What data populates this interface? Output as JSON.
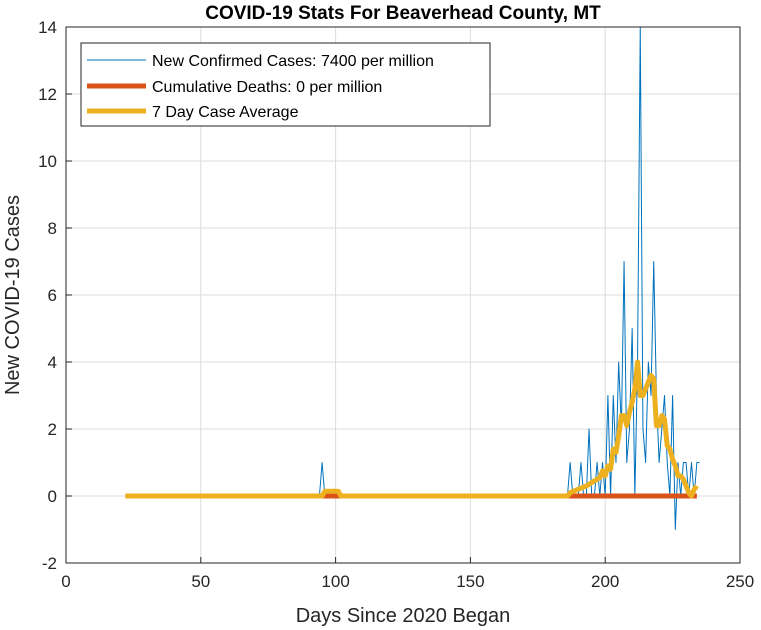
{
  "chart_data": {
    "type": "line",
    "title": "COVID-19 Stats For Beaverhead County, MT",
    "xlabel": "Days Since 2020 Began",
    "ylabel": "New COVID-19 Cases",
    "xlim": [
      0,
      250
    ],
    "ylim": [
      -2,
      14
    ],
    "xticks": [
      0,
      50,
      100,
      150,
      200,
      250
    ],
    "yticks": [
      -2,
      0,
      2,
      4,
      6,
      8,
      10,
      12,
      14
    ],
    "grid": true,
    "legend_position": "top-left",
    "series": [
      {
        "name": "New Confirmed Cases: 7400 per million",
        "color": "#0072BD",
        "points": [
          [
            22,
            0
          ],
          [
            94,
            0
          ],
          [
            95,
            1
          ],
          [
            96,
            0
          ],
          [
            186,
            0
          ],
          [
            187,
            1
          ],
          [
            188,
            0
          ],
          [
            190,
            0
          ],
          [
            191,
            1
          ],
          [
            192,
            0
          ],
          [
            193,
            0
          ],
          [
            194,
            2
          ],
          [
            195,
            0
          ],
          [
            196,
            0
          ],
          [
            197,
            1
          ],
          [
            198,
            0
          ],
          [
            199,
            1
          ],
          [
            200,
            0
          ],
          [
            201,
            3
          ],
          [
            202,
            0
          ],
          [
            203,
            3
          ],
          [
            204,
            1
          ],
          [
            205,
            4
          ],
          [
            206,
            2
          ],
          [
            207,
            7
          ],
          [
            208,
            1
          ],
          [
            209,
            2
          ],
          [
            210,
            5
          ],
          [
            211,
            0
          ],
          [
            212,
            4
          ],
          [
            213,
            14
          ],
          [
            214,
            2
          ],
          [
            215,
            1
          ],
          [
            216,
            4
          ],
          [
            217,
            3
          ],
          [
            218,
            7
          ],
          [
            219,
            3
          ],
          [
            220,
            1
          ],
          [
            221,
            2
          ],
          [
            222,
            3
          ],
          [
            223,
            1
          ],
          [
            224,
            0
          ],
          [
            225,
            3
          ],
          [
            226,
            -1
          ],
          [
            227,
            1
          ],
          [
            228,
            0
          ],
          [
            229,
            1
          ],
          [
            230,
            1
          ],
          [
            231,
            0
          ],
          [
            232,
            1
          ],
          [
            233,
            0
          ],
          [
            234,
            1
          ],
          [
            235,
            1
          ]
        ]
      },
      {
        "name": "Cumulative Deaths: 0 per million",
        "color": "#D95319",
        "points": [
          [
            95,
            0
          ],
          [
            101,
            0
          ],
          [
            187,
            0
          ],
          [
            234,
            0
          ]
        ]
      },
      {
        "name": "7 Day Case Average",
        "color": "#EDB120",
        "points": [
          [
            22,
            0
          ],
          [
            95,
            0
          ],
          [
            96,
            0.14
          ],
          [
            101,
            0.14
          ],
          [
            102,
            0
          ],
          [
            186,
            0
          ],
          [
            187,
            0.1
          ],
          [
            190,
            0.2
          ],
          [
            193,
            0.3
          ],
          [
            196,
            0.45
          ],
          [
            198,
            0.55
          ],
          [
            199,
            0.75
          ],
          [
            200,
            0.6
          ],
          [
            201,
            0.9
          ],
          [
            202,
            0.8
          ],
          [
            203,
            1.4
          ],
          [
            204,
            1.3
          ],
          [
            205,
            1.8
          ],
          [
            206,
            2.4
          ],
          [
            207,
            2.4
          ],
          [
            208,
            2.1
          ],
          [
            209,
            2.5
          ],
          [
            210,
            2.8
          ],
          [
            211,
            3.2
          ],
          [
            212,
            4.0
          ],
          [
            213,
            3.0
          ],
          [
            214,
            3.0
          ],
          [
            215,
            3.2
          ],
          [
            216,
            3.4
          ],
          [
            217,
            3.6
          ],
          [
            218,
            3.5
          ],
          [
            219,
            2.1
          ],
          [
            220,
            2.1
          ],
          [
            221,
            2.4
          ],
          [
            222,
            2.3
          ],
          [
            223,
            1.5
          ],
          [
            224,
            1.4
          ],
          [
            225,
            1.1
          ],
          [
            226,
            0.9
          ],
          [
            227,
            0.6
          ],
          [
            228,
            0.6
          ],
          [
            229,
            0.5
          ],
          [
            230,
            0.3
          ],
          [
            231,
            0.1
          ],
          [
            232,
            0.0
          ],
          [
            233,
            0.2
          ],
          [
            234,
            0.3
          ]
        ]
      }
    ]
  }
}
